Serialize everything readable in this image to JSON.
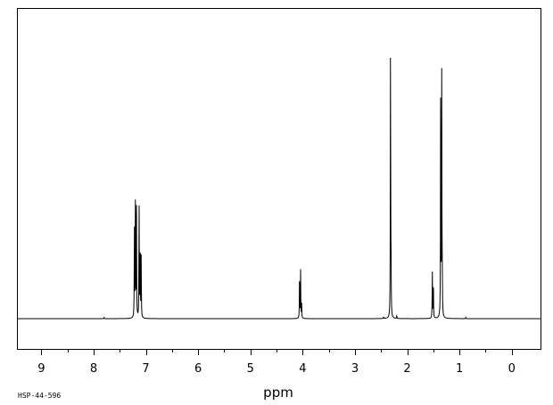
{
  "chart_data": {
    "type": "line",
    "title": "",
    "xlabel": "ppm",
    "ylabel": "",
    "xlim": [
      9.45,
      -0.55
    ],
    "x_reversed": true,
    "ylim": [
      -0.1,
      1.0
    ],
    "grid": false,
    "legend": "none",
    "ticks": [
      9,
      8,
      7,
      6,
      5,
      4,
      3,
      2,
      1,
      0
    ],
    "tick_labels": [
      "9",
      "8",
      "7",
      "6",
      "5",
      "4",
      "3",
      "2",
      "1",
      "0"
    ],
    "peaks": [
      {
        "ppm": 7.22,
        "height": 0.32
      },
      {
        "ppm": 7.2,
        "height": 0.46
      },
      {
        "ppm": 7.18,
        "height": 0.36
      },
      {
        "ppm": 7.13,
        "height": 0.38
      },
      {
        "ppm": 7.11,
        "height": 0.27
      },
      {
        "ppm": 7.09,
        "height": 0.21
      },
      {
        "ppm": 4.06,
        "height": 0.15
      },
      {
        "ppm": 4.04,
        "height": 0.16
      },
      {
        "ppm": 4.02,
        "height": 0.05
      },
      {
        "ppm": 2.32,
        "height": 0.94
      },
      {
        "ppm": 2.31,
        "height": 0.17
      },
      {
        "ppm": 1.52,
        "height": 0.16
      },
      {
        "ppm": 1.5,
        "height": 0.13
      },
      {
        "ppm": 1.36,
        "height": 0.8
      },
      {
        "ppm": 1.34,
        "height": 0.79
      },
      {
        "ppm": 1.33,
        "height": 0.13
      },
      {
        "ppm": 7.8,
        "height": 0.004
      },
      {
        "ppm": 2.45,
        "height": 0.006
      },
      {
        "ppm": 2.2,
        "height": 0.01
      },
      {
        "ppm": 0.88,
        "height": 0.004
      }
    ]
  },
  "footer": {
    "code": "HSP-44-596"
  }
}
